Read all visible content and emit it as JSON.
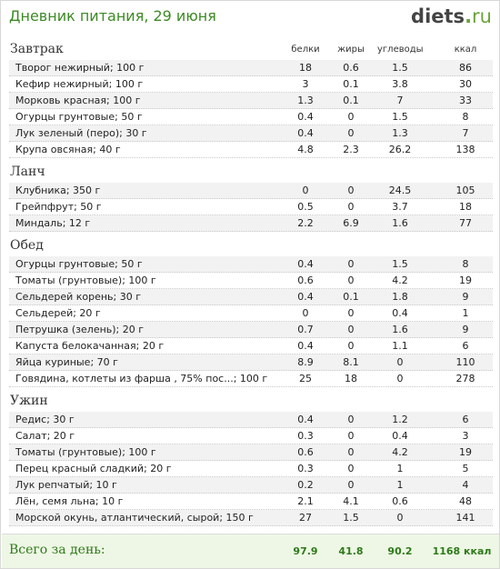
{
  "header": {
    "title": "Дневник питания, 29 июня",
    "logo_main": "diets",
    "logo_dot": ".",
    "logo_tld": "ru"
  },
  "columns": {
    "protein": "белки",
    "fat": "жиры",
    "carbs": "углеводы",
    "kcal": "ккал"
  },
  "sections": [
    {
      "name": "Завтрак",
      "rows": [
        {
          "name": "Творог нежирный; 100 г",
          "protein": "18",
          "fat": "0.6",
          "carbs": "1.5",
          "kcal": "86"
        },
        {
          "name": "Кефир нежирный; 100 г",
          "protein": "3",
          "fat": "0.1",
          "carbs": "3.8",
          "kcal": "30"
        },
        {
          "name": "Морковь красная; 100 г",
          "protein": "1.3",
          "fat": "0.1",
          "carbs": "7",
          "kcal": "33"
        },
        {
          "name": "Огурцы грунтовые; 50 г",
          "protein": "0.4",
          "fat": "0",
          "carbs": "1.5",
          "kcal": "8"
        },
        {
          "name": "Лук зеленый (перо); 30 г",
          "protein": "0.4",
          "fat": "0",
          "carbs": "1.3",
          "kcal": "7"
        },
        {
          "name": "Крупа овсяная; 40 г",
          "protein": "4.8",
          "fat": "2.3",
          "carbs": "26.2",
          "kcal": "138"
        }
      ]
    },
    {
      "name": "Ланч",
      "rows": [
        {
          "name": "Клубника; 350 г",
          "protein": "0",
          "fat": "0",
          "carbs": "24.5",
          "kcal": "105"
        },
        {
          "name": "Грейпфрут; 50 г",
          "protein": "0.5",
          "fat": "0",
          "carbs": "3.7",
          "kcal": "18"
        },
        {
          "name": "Миндаль; 12 г",
          "protein": "2.2",
          "fat": "6.9",
          "carbs": "1.6",
          "kcal": "77"
        }
      ]
    },
    {
      "name": "Обед",
      "rows": [
        {
          "name": "Огурцы грунтовые; 50 г",
          "protein": "0.4",
          "fat": "0",
          "carbs": "1.5",
          "kcal": "8"
        },
        {
          "name": "Томаты (грунтовые); 100 г",
          "protein": "0.6",
          "fat": "0",
          "carbs": "4.2",
          "kcal": "19"
        },
        {
          "name": "Сельдерей корень; 30 г",
          "protein": "0.4",
          "fat": "0.1",
          "carbs": "1.8",
          "kcal": "9"
        },
        {
          "name": "Сельдерей; 20 г",
          "protein": "0",
          "fat": "0",
          "carbs": "0.4",
          "kcal": "1"
        },
        {
          "name": "Петрушка (зелень); 20 г",
          "protein": "0.7",
          "fat": "0",
          "carbs": "1.6",
          "kcal": "9"
        },
        {
          "name": "Капуста белокачанная; 20 г",
          "protein": "0.4",
          "fat": "0",
          "carbs": "1.1",
          "kcal": "6"
        },
        {
          "name": "Яйца куриные; 70 г",
          "protein": "8.9",
          "fat": "8.1",
          "carbs": "0",
          "kcal": "110"
        },
        {
          "name": "Говядина, котлеты из фарша , 75% пос...; 100 г",
          "protein": "25",
          "fat": "18",
          "carbs": "0",
          "kcal": "278"
        }
      ]
    },
    {
      "name": "Ужин",
      "rows": [
        {
          "name": "Редис; 30 г",
          "protein": "0.4",
          "fat": "0",
          "carbs": "1.2",
          "kcal": "6"
        },
        {
          "name": "Салат; 20 г",
          "protein": "0.3",
          "fat": "0",
          "carbs": "0.4",
          "kcal": "3"
        },
        {
          "name": "Томаты (грунтовые); 100 г",
          "protein": "0.6",
          "fat": "0",
          "carbs": "4.2",
          "kcal": "19"
        },
        {
          "name": "Перец красный сладкий; 20 г",
          "protein": "0.3",
          "fat": "0",
          "carbs": "1",
          "kcal": "5"
        },
        {
          "name": "Лук репчатый; 10 г",
          "protein": "0.2",
          "fat": "0",
          "carbs": "1",
          "kcal": "4"
        },
        {
          "name": "Лён, семя льна; 10 г",
          "protein": "2.1",
          "fat": "4.1",
          "carbs": "0.6",
          "kcal": "48"
        },
        {
          "name": "Морской окунь, атлантический, сырой; 150 г",
          "protein": "27",
          "fat": "1.5",
          "carbs": "0",
          "kcal": "141"
        }
      ]
    }
  ],
  "total": {
    "label": "Всего за день:",
    "protein": "97.9",
    "fat": "41.8",
    "carbs": "90.2",
    "kcal": "1168 ккал"
  },
  "colors": {
    "title": "#3c8a23",
    "total_bg": "#eef7e5",
    "row_alt": "#f2f2f2"
  }
}
